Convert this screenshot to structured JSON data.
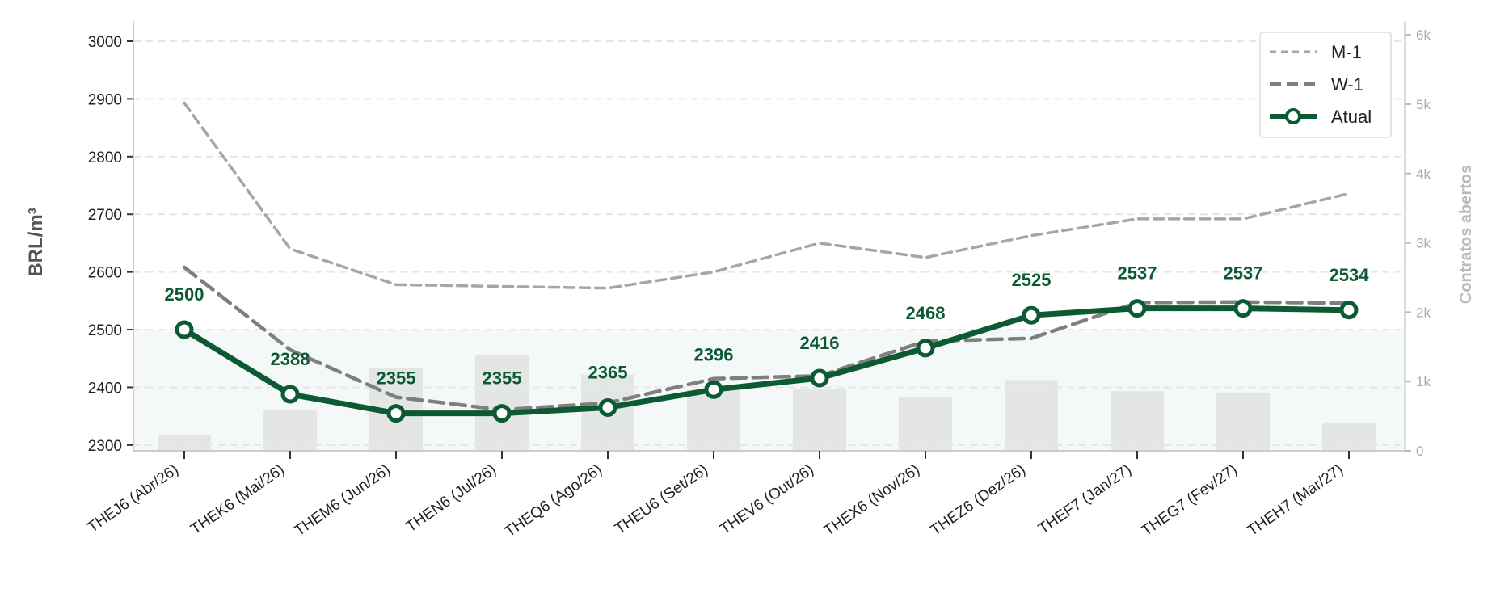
{
  "chart_data": {
    "type": "line",
    "categories": [
      "THEJ6 (Abr/26)",
      "THEK6 (Mai/26)",
      "THEM6 (Jun/26)",
      "THEN6 (Jul/26)",
      "THEQ6 (Ago/26)",
      "THEU6 (Set/26)",
      "THEV6 (Out/26)",
      "THEX6 (Nov/26)",
      "THEZ6 (Dez/26)",
      "THEF7 (Jan/27)",
      "THEG7 (Fev/27)",
      "THEH7 (Mar/27)"
    ],
    "ylabel": "BRL/m³",
    "y2label": "Contratos abertos",
    "ylim": [
      2290,
      3035
    ],
    "yticks": [
      2300,
      2400,
      2500,
      2600,
      2700,
      2800,
      2900,
      3000
    ],
    "y2lim": [
      0,
      6200
    ],
    "y2ticks": [
      0,
      1000,
      2000,
      3000,
      4000,
      5000,
      6000
    ],
    "y2ticklabels": [
      "0",
      "1k",
      "2k",
      "3k",
      "4k",
      "5k",
      "6k"
    ],
    "grid": true,
    "legend_position": "top-right",
    "series": [
      {
        "name": "M-1",
        "style": "dashed-light",
        "color": "#a6a6a6",
        "values": [
          2893,
          2640,
          2578,
          2575,
          2572,
          2600,
          2650,
          2625,
          2663,
          2692,
          2692,
          2736
        ]
      },
      {
        "name": "W-1",
        "style": "dashed-dark",
        "color": "#7f7f7f",
        "values": [
          2608,
          2465,
          2383,
          2361,
          2373,
          2415,
          2420,
          2480,
          2485,
          2547,
          2548,
          2546
        ]
      },
      {
        "name": "Atual",
        "style": "solid-markers",
        "color": "#0b5a34",
        "values": [
          2500,
          2388,
          2355,
          2355,
          2365,
          2396,
          2416,
          2468,
          2525,
          2537,
          2537,
          2534
        ],
        "data_labels": [
          "2500",
          "2388",
          "2355",
          "2355",
          "2365",
          "2396",
          "2416",
          "2468",
          "2525",
          "2537",
          "2537",
          "2534"
        ]
      }
    ],
    "open_interest": {
      "name": "Contratos abertos",
      "color": "#e4e6e6",
      "values": [
        230,
        580,
        1200,
        1380,
        1100,
        880,
        890,
        780,
        1020,
        860,
        840,
        410
      ]
    },
    "shaded_band_upto": 2500,
    "shaded_band_color": "#f4f8f8"
  }
}
